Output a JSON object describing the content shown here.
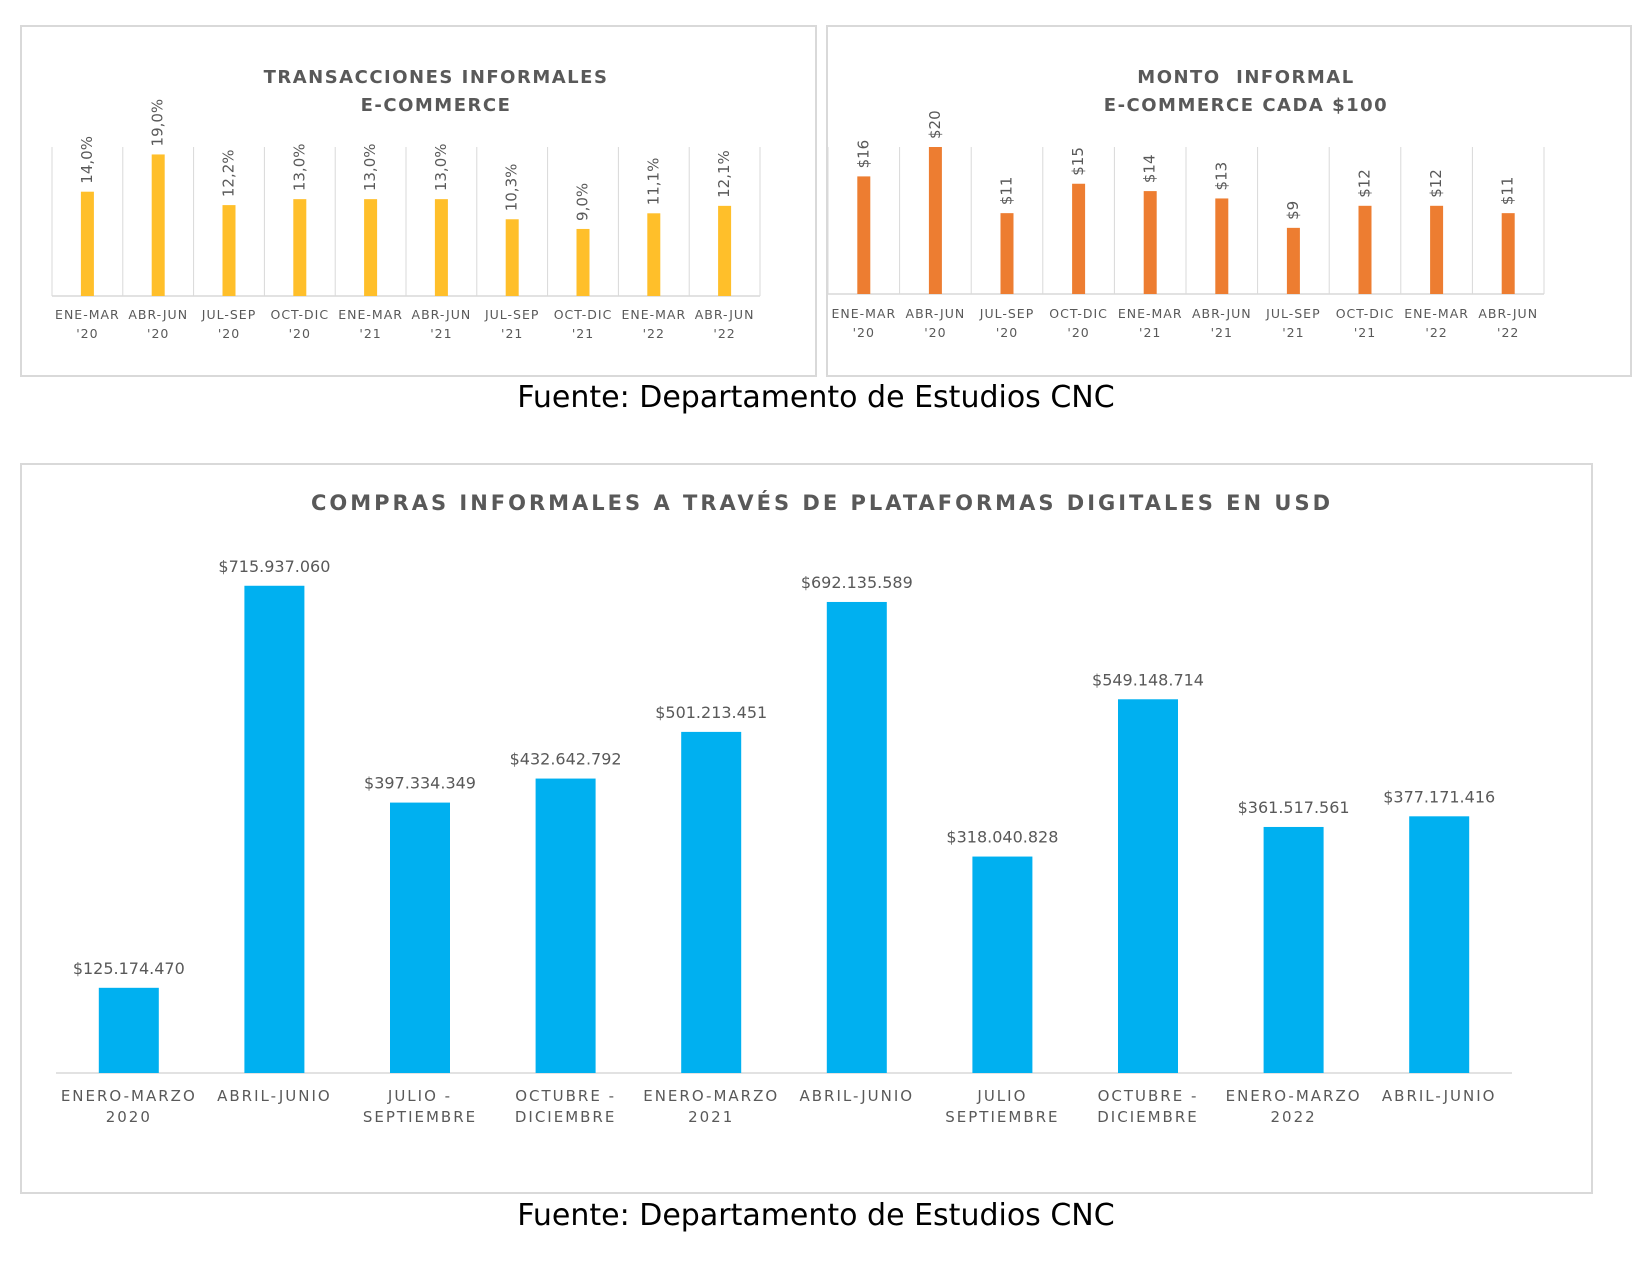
{
  "charts": {
    "trans": {
      "title_line1": "TRANSACCIONES INFORMALES",
      "title_line2": "E-COMMERCE",
      "bar_color": "#FFBF2A"
    },
    "monto": {
      "title_line1": "MONTO  INFORMAL",
      "title_line2": "E-COMMERCE CADA $100",
      "bar_color": "#ED7D31"
    },
    "compras": {
      "title": "COMPRAS INFORMALES A TRAVÉS DE PLATAFORMAS DIGITALES EN USD",
      "bar_color": "#00B0F0"
    }
  },
  "chart_data": [
    {
      "type": "bar",
      "title": "TRANSACCIONES INFORMALES E-COMMERCE",
      "categories": [
        [
          "ENE-MAR",
          "'20"
        ],
        [
          "ABR-JUN",
          "'20"
        ],
        [
          "JUL-SEP",
          "'20"
        ],
        [
          "OCT-DIC",
          "'20"
        ],
        [
          "ENE-MAR",
          "'21"
        ],
        [
          "ABR-JUN",
          "'21"
        ],
        [
          "JUL-SEP",
          "'21"
        ],
        [
          "OCT-DIC",
          "'21"
        ],
        [
          "ENE-MAR",
          "'22"
        ],
        [
          "ABR-JUN",
          "'22"
        ]
      ],
      "values": [
        14.0,
        19.0,
        12.2,
        13.0,
        13.0,
        13.0,
        10.3,
        9.0,
        11.1,
        12.1
      ],
      "data_labels": [
        "14,0%",
        "19,0%",
        "12,2%",
        "13,0%",
        "13,0%",
        "13,0%",
        "10,3%",
        "9,0%",
        "11,1%",
        "12,1%"
      ],
      "ylim": [
        0,
        20
      ],
      "grid": "vertical"
    },
    {
      "type": "bar",
      "title": "MONTO INFORMAL E-COMMERCE CADA $100",
      "categories": [
        [
          "ENE-MAR",
          "'20"
        ],
        [
          "ABR-JUN",
          "'20"
        ],
        [
          "JUL-SEP",
          "'20"
        ],
        [
          "OCT-DIC",
          "'20"
        ],
        [
          "ENE-MAR",
          "'21"
        ],
        [
          "ABR-JUN",
          "'21"
        ],
        [
          "JUL-SEP",
          "'21"
        ],
        [
          "OCT-DIC",
          "'21"
        ],
        [
          "ENE-MAR",
          "'22"
        ],
        [
          "ABR-JUN",
          "'22"
        ]
      ],
      "values": [
        16,
        20,
        11,
        15,
        14,
        13,
        9,
        12,
        12,
        11
      ],
      "data_labels": [
        "$16",
        "$20",
        "$11",
        "$15",
        "$14",
        "$13",
        "$9",
        "$12",
        "$12",
        "$11"
      ],
      "ylim": [
        0,
        20
      ],
      "grid": "vertical"
    },
    {
      "type": "bar",
      "title": "COMPRAS INFORMALES A TRAVÉS DE PLATAFORMAS DIGITALES EN USD",
      "categories": [
        [
          "ENERO-MARZO",
          "2020"
        ],
        [
          "ABRIL-JUNIO"
        ],
        [
          "JULIO -",
          "SEPTIEMBRE"
        ],
        [
          "OCTUBRE -",
          "DICIEMBRE"
        ],
        [
          "ENERO-MARZO",
          "2021"
        ],
        [
          "ABRIL-JUNIO"
        ],
        [
          "JULIO",
          "SEPTIEMBRE"
        ],
        [
          "OCTUBRE -",
          "DICIEMBRE"
        ],
        [
          "ENERO-MARZO",
          "2022"
        ],
        [
          "ABRIL-JUNIO"
        ]
      ],
      "values": [
        125174470,
        715937060,
        397334349,
        432642792,
        501213451,
        692135589,
        318040828,
        549148714,
        361517561,
        377171416
      ],
      "data_labels": [
        "$125.174.470",
        "$715.937.060",
        "$397.334.349",
        "$432.642.792",
        "$501.213.451",
        "$692.135.589",
        "$318.040.828",
        "$549.148.714",
        "$361.517.561",
        "$377.171.416"
      ],
      "ylim": [
        0,
        720000000
      ],
      "grid": "none"
    }
  ],
  "sources": {
    "top": "Fuente: Departamento de Estudios CNC",
    "bottom": "Fuente: Departamento de Estudios CNC"
  }
}
